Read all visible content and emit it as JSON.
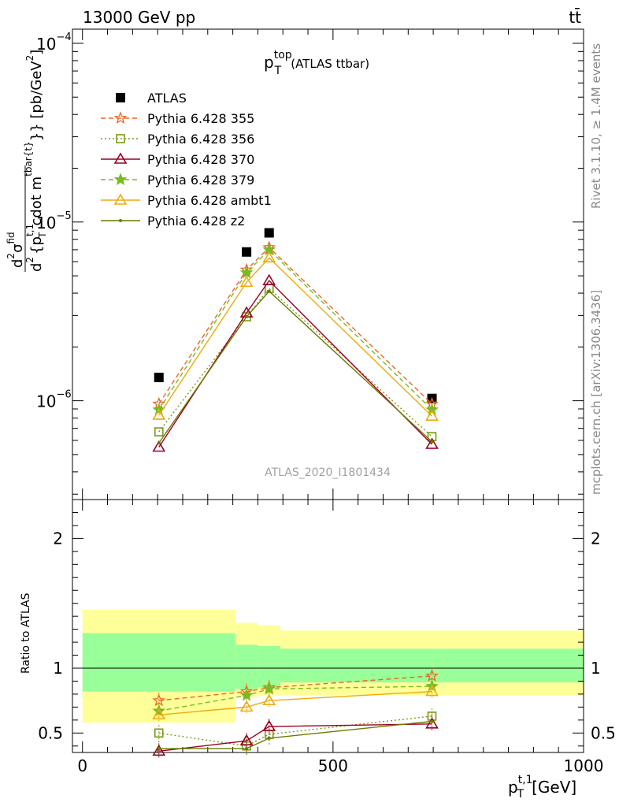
{
  "header": {
    "energy": "13000 GeV pp",
    "process": "tt̄"
  },
  "side_text": {
    "rivet": "Rivet 3.1.10, ≥ 1.4M events",
    "mcplots": "mcplots.cern.ch [arXiv:1306.3436]"
  },
  "watermark": "ATLAS_2020_I1801434",
  "colors": {
    "atlas": "#000000",
    "p355": "#ee6622",
    "p356": "#7a9a14",
    "p370": "#990022",
    "p379": "#77bb22",
    "ambt1": "#eeaa11",
    "z2": "#6b7a00",
    "band_outer": "#ffff99",
    "band_inner": "#99ff99"
  },
  "chart_data": [
    {
      "type": "line",
      "title_main": "p",
      "title_sup": "top",
      "title_sub": "T",
      "title_rest": "(ATLAS ttbar)",
      "ylabel_parts": {
        "d": "d",
        "num_sup": "2",
        "sigma": "σ",
        "sigma_sup": "fid",
        "d2": "d",
        "d2_sup": "2",
        "mid": "{p",
        "pt_sub": "T",
        "pt_sup": "t,1",
        "rest": "cdot m",
        "m_sup": "tbar{t}",
        "tail": "}} [pb/GeV",
        "unit_sup": "2",
        "close": "]"
      },
      "yscale": "log",
      "ylim": [
        2.8e-07,
        0.00012
      ],
      "xlim": [
        -20,
        1000
      ],
      "ytick_labels": [
        {
          "base": "10",
          "exp": "−6",
          "value": 1e-06
        },
        {
          "base": "10",
          "exp": "−5",
          "value": 1e-05
        },
        {
          "base": "10",
          "exp": "−4",
          "value": 0.0001
        }
      ],
      "legend_position": "top-left",
      "x": [
        152.5,
        327.5,
        372.5,
        697.5
      ],
      "series": [
        {
          "key": "atlas",
          "name": "ATLAS",
          "values": [
            1.35e-06,
            6.8e-06,
            8.7e-06,
            1.03e-06
          ],
          "marker": "square",
          "line": "none"
        },
        {
          "key": "p355",
          "name": "Pythia 6.428 355",
          "values": [
            9.6e-07,
            5.4e-06,
            7.2e-06,
            9.6e-07
          ],
          "marker": "star-open",
          "line": "dashed"
        },
        {
          "key": "p356",
          "name": "Pythia 6.428 356",
          "values": [
            6.7e-07,
            2.95e-06,
            4.25e-06,
            6.3e-07
          ],
          "marker": "square-open",
          "line": "dotted"
        },
        {
          "key": "p370",
          "name": "Pythia 6.428 370",
          "values": [
            5.5e-07,
            3.1e-06,
            4.7e-06,
            5.7e-07
          ],
          "marker": "triangle-open",
          "line": "solid"
        },
        {
          "key": "p379",
          "name": "Pythia 6.428 379",
          "values": [
            8.9e-07,
            5.2e-06,
            7e-06,
            8.9e-07
          ],
          "marker": "star",
          "line": "dashed"
        },
        {
          "key": "ambt1",
          "name": "Pythia 6.428 ambt1",
          "values": [
            8.3e-07,
            4.6e-06,
            6.3e-06,
            8.2e-07
          ],
          "marker": "triangle-open",
          "line": "solid"
        },
        {
          "key": "z2",
          "name": "Pythia 6.428 z2",
          "values": [
            5.8e-07,
            2.95e-06,
            4.1e-06,
            5.9e-07
          ],
          "marker": "dot",
          "line": "solid"
        }
      ]
    },
    {
      "type": "line",
      "ylabel": "Ratio to ATLAS",
      "xlabel_main": "p",
      "xlabel_sub": "T",
      "xlabel_sup": "t,1",
      "xlabel_unit": "[GeV]",
      "ylim": [
        0.35,
        2.3
      ],
      "xlim": [
        -20,
        1000
      ],
      "yticks": [
        {
          "label": "0.5",
          "value": 0.5
        },
        {
          "label": "1",
          "value": 1
        },
        {
          "label": "2",
          "value": 2
        }
      ],
      "xticks": [
        {
          "label": "0",
          "value": 0
        },
        {
          "label": "500",
          "value": 500
        },
        {
          "label": "1000",
          "value": 1000
        }
      ],
      "bins": [
        [
          0,
          305
        ],
        [
          305,
          350
        ],
        [
          350,
          395
        ],
        [
          395,
          1000
        ]
      ],
      "band_inner": [
        [
          0.82,
          1.27
        ],
        [
          0.84,
          1.18
        ],
        [
          0.85,
          1.17
        ],
        [
          0.89,
          1.15
        ]
      ],
      "band_outer": [
        [
          0.58,
          1.45
        ],
        [
          0.78,
          1.35
        ],
        [
          0.79,
          1.33
        ],
        [
          0.79,
          1.29
        ]
      ],
      "x": [
        152.5,
        327.5,
        372.5,
        697.5
      ],
      "series": [
        {
          "key": "p355",
          "values": [
            0.75,
            0.82,
            0.85,
            0.94
          ],
          "marker": "star-open",
          "line": "dashed"
        },
        {
          "key": "p356",
          "values": [
            0.5,
            0.4,
            0.49,
            0.63
          ],
          "marker": "square-open",
          "line": "dotted"
        },
        {
          "key": "p370",
          "values": [
            0.36,
            0.44,
            0.55,
            0.57
          ],
          "marker": "triangle-open",
          "line": "solid"
        },
        {
          "key": "p379",
          "values": [
            0.67,
            0.79,
            0.84,
            0.86
          ],
          "marker": "star",
          "line": "dashed"
        },
        {
          "key": "ambt1",
          "values": [
            0.64,
            0.7,
            0.75,
            0.82
          ],
          "marker": "triangle-open",
          "line": "solid"
        },
        {
          "key": "z2",
          "values": [
            0.38,
            0.38,
            0.46,
            0.59
          ],
          "marker": "dot",
          "line": "solid"
        }
      ]
    }
  ]
}
